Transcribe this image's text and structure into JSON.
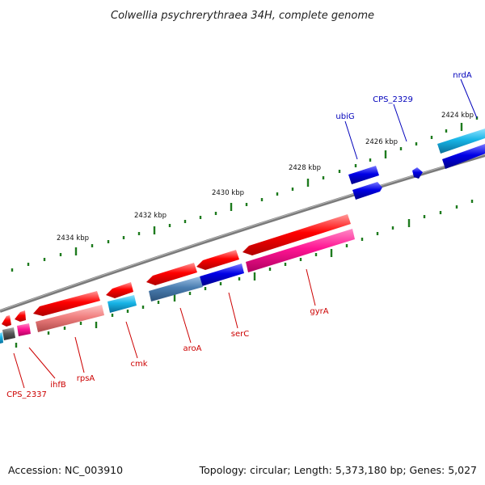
{
  "title": "Colwellia psychrerythraea 34H, complete genome",
  "footer": {
    "accession": "Accession: NC_003910",
    "summary": "Topology: circular; Length: 5,373,180 bp; Genes: 5,027"
  },
  "scale_labels": [
    "2424 kbp",
    "2426 kbp",
    "2428 kbp",
    "2430 kbp",
    "2432 kbp",
    "2434 kbp"
  ],
  "colors": {
    "backbone": "#808080",
    "tick": "#1e7b1e",
    "cds_red": "#ff0000",
    "gene_pink": "#ff1493",
    "gene_light_red": "#f07f7f",
    "gene_cyan": "#17b4e6",
    "gene_blue": "#0000e6",
    "gene_steel": "#4a7db0",
    "gene_gray": "#5a5a5a",
    "label_red": "#cc0000",
    "label_blue": "#0000bb"
  },
  "gene_labels": [
    {
      "name": "nrdA",
      "color": "blue"
    },
    {
      "name": "CPS_2329",
      "color": "blue"
    },
    {
      "name": "ubiG",
      "color": "blue"
    },
    {
      "name": "gyrA",
      "color": "red"
    },
    {
      "name": "serC",
      "color": "red"
    },
    {
      "name": "aroA",
      "color": "red"
    },
    {
      "name": "cmk",
      "color": "red"
    },
    {
      "name": "rpsA",
      "color": "red"
    },
    {
      "name": "ihfB",
      "color": "red"
    },
    {
      "name": "CPS_2337",
      "color": "red"
    }
  ]
}
